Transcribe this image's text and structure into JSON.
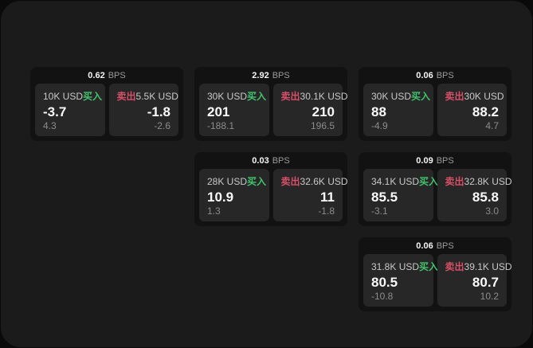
{
  "colors": {
    "buy": "#3fc46d",
    "sell": "#d94f68",
    "page_background": "#1b1b1b",
    "card_background": "#121212",
    "panel_background": "#272727"
  },
  "cards": [
    {
      "col": 1,
      "row": 1,
      "bps_value": "0.62",
      "bps_unit": "BPS",
      "buy": {
        "amount": "10K USD",
        "side_label": "买入",
        "price": "-3.7",
        "delta": "4.3"
      },
      "sell": {
        "amount": "5.5K USD",
        "side_label": "卖出",
        "price": "-1.8",
        "delta": "-2.6"
      }
    },
    {
      "col": 2,
      "row": 1,
      "bps_value": "2.92",
      "bps_unit": "BPS",
      "buy": {
        "amount": "30K USD",
        "side_label": "买入",
        "price": "201",
        "delta": "-188.1"
      },
      "sell": {
        "amount": "30.1K USD",
        "side_label": "卖出",
        "price": "210",
        "delta": "196.5"
      }
    },
    {
      "col": 3,
      "row": 1,
      "bps_value": "0.06",
      "bps_unit": "BPS",
      "buy": {
        "amount": "30K USD",
        "side_label": "买入",
        "price": "88",
        "delta": "-4.9"
      },
      "sell": {
        "amount": "30K USD",
        "side_label": "卖出",
        "price": "88.2",
        "delta": "4.7"
      }
    },
    {
      "col": 2,
      "row": 2,
      "bps_value": "0.03",
      "bps_unit": "BPS",
      "buy": {
        "amount": "28K USD",
        "side_label": "买入",
        "price": "10.9",
        "delta": "1.3"
      },
      "sell": {
        "amount": "32.6K USD",
        "side_label": "卖出",
        "price": "11",
        "delta": "-1.8"
      }
    },
    {
      "col": 3,
      "row": 2,
      "bps_value": "0.09",
      "bps_unit": "BPS",
      "buy": {
        "amount": "34.1K USD",
        "side_label": "买入",
        "price": "85.5",
        "delta": "-3.1"
      },
      "sell": {
        "amount": "32.8K USD",
        "side_label": "卖出",
        "price": "85.8",
        "delta": "3.0"
      }
    },
    {
      "col": 3,
      "row": 3,
      "bps_value": "0.06",
      "bps_unit": "BPS",
      "buy": {
        "amount": "31.8K USD",
        "side_label": "买入",
        "price": "80.5",
        "delta": "-10.8"
      },
      "sell": {
        "amount": "39.1K USD",
        "side_label": "卖出",
        "price": "80.7",
        "delta": "10.2"
      }
    }
  ]
}
